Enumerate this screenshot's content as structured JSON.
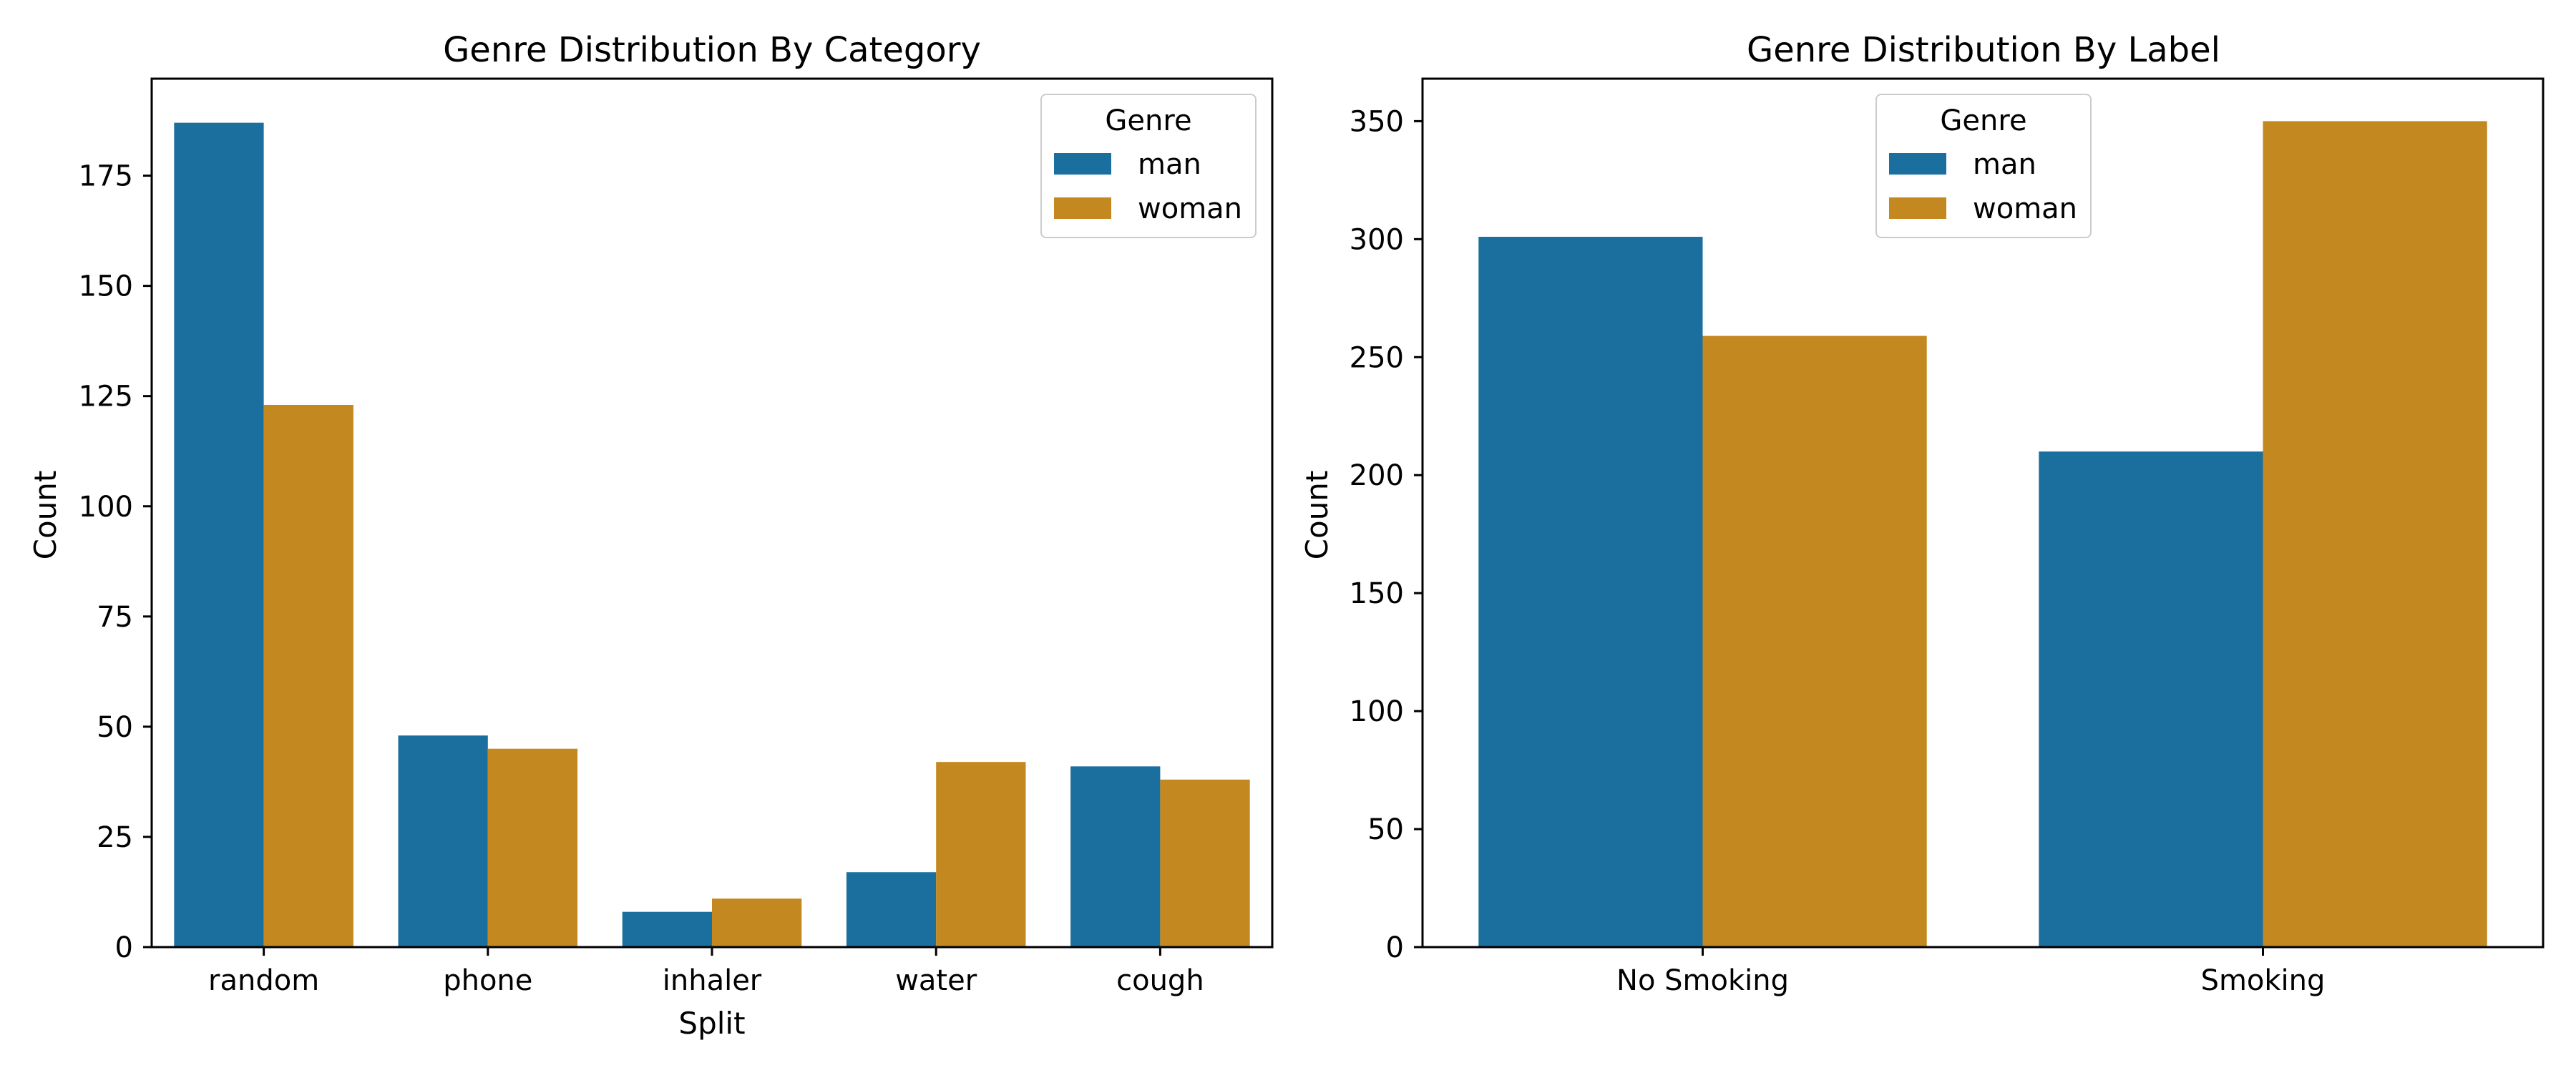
{
  "colors": {
    "man": "#1a6f9f",
    "woman": "#c38820"
  },
  "chart_data": [
    {
      "type": "bar",
      "title": "Genre Distribution By Category",
      "xlabel": "Split",
      "ylabel": "Count",
      "categories": [
        "random",
        "phone",
        "inhaler",
        "water",
        "cough"
      ],
      "series": [
        {
          "name": "man",
          "values": [
            187,
            48,
            8,
            17,
            41
          ]
        },
        {
          "name": "woman",
          "values": [
            123,
            45,
            11,
            42,
            38
          ]
        }
      ],
      "ylim": [
        0,
        197
      ],
      "yticks": [
        0,
        25,
        50,
        75,
        100,
        125,
        150,
        175
      ],
      "legend": {
        "title": "Genre",
        "position": "top-right"
      },
      "grid": false
    },
    {
      "type": "bar",
      "title": "Genre Distribution By Label",
      "xlabel": "",
      "ylabel": "Count",
      "categories": [
        "No Smoking",
        "Smoking"
      ],
      "series": [
        {
          "name": "man",
          "values": [
            301,
            210
          ]
        },
        {
          "name": "woman",
          "values": [
            259,
            350
          ]
        }
      ],
      "ylim": [
        0,
        368
      ],
      "yticks": [
        0,
        50,
        100,
        150,
        200,
        250,
        300,
        350
      ],
      "legend": {
        "title": "Genre",
        "position": "top-center"
      },
      "grid": false
    }
  ]
}
